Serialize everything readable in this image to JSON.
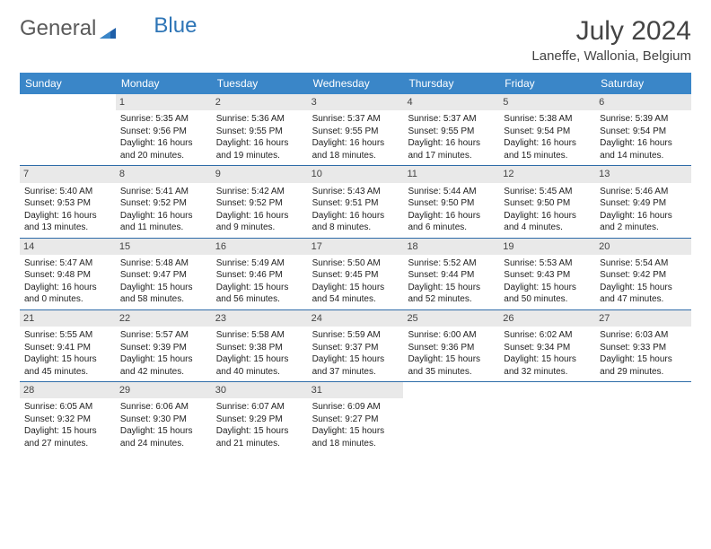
{
  "logo": {
    "text1": "General",
    "text2": "Blue"
  },
  "title": "July 2024",
  "location": "Laneffe, Wallonia, Belgium",
  "colors": {
    "header_bg": "#3a86c8",
    "header_text": "#ffffff",
    "week_border": "#2e6ca8",
    "daynum_bg": "#e9e9e9",
    "logo_gray": "#5a5a5a",
    "logo_blue": "#2e75b6"
  },
  "day_labels": [
    "Sunday",
    "Monday",
    "Tuesday",
    "Wednesday",
    "Thursday",
    "Friday",
    "Saturday"
  ],
  "weeks": [
    [
      {
        "empty": true
      },
      {
        "num": "1",
        "sunrise": "Sunrise: 5:35 AM",
        "sunset": "Sunset: 9:56 PM",
        "day1": "Daylight: 16 hours",
        "day2": "and 20 minutes."
      },
      {
        "num": "2",
        "sunrise": "Sunrise: 5:36 AM",
        "sunset": "Sunset: 9:55 PM",
        "day1": "Daylight: 16 hours",
        "day2": "and 19 minutes."
      },
      {
        "num": "3",
        "sunrise": "Sunrise: 5:37 AM",
        "sunset": "Sunset: 9:55 PM",
        "day1": "Daylight: 16 hours",
        "day2": "and 18 minutes."
      },
      {
        "num": "4",
        "sunrise": "Sunrise: 5:37 AM",
        "sunset": "Sunset: 9:55 PM",
        "day1": "Daylight: 16 hours",
        "day2": "and 17 minutes."
      },
      {
        "num": "5",
        "sunrise": "Sunrise: 5:38 AM",
        "sunset": "Sunset: 9:54 PM",
        "day1": "Daylight: 16 hours",
        "day2": "and 15 minutes."
      },
      {
        "num": "6",
        "sunrise": "Sunrise: 5:39 AM",
        "sunset": "Sunset: 9:54 PM",
        "day1": "Daylight: 16 hours",
        "day2": "and 14 minutes."
      }
    ],
    [
      {
        "num": "7",
        "sunrise": "Sunrise: 5:40 AM",
        "sunset": "Sunset: 9:53 PM",
        "day1": "Daylight: 16 hours",
        "day2": "and 13 minutes."
      },
      {
        "num": "8",
        "sunrise": "Sunrise: 5:41 AM",
        "sunset": "Sunset: 9:52 PM",
        "day1": "Daylight: 16 hours",
        "day2": "and 11 minutes."
      },
      {
        "num": "9",
        "sunrise": "Sunrise: 5:42 AM",
        "sunset": "Sunset: 9:52 PM",
        "day1": "Daylight: 16 hours",
        "day2": "and 9 minutes."
      },
      {
        "num": "10",
        "sunrise": "Sunrise: 5:43 AM",
        "sunset": "Sunset: 9:51 PM",
        "day1": "Daylight: 16 hours",
        "day2": "and 8 minutes."
      },
      {
        "num": "11",
        "sunrise": "Sunrise: 5:44 AM",
        "sunset": "Sunset: 9:50 PM",
        "day1": "Daylight: 16 hours",
        "day2": "and 6 minutes."
      },
      {
        "num": "12",
        "sunrise": "Sunrise: 5:45 AM",
        "sunset": "Sunset: 9:50 PM",
        "day1": "Daylight: 16 hours",
        "day2": "and 4 minutes."
      },
      {
        "num": "13",
        "sunrise": "Sunrise: 5:46 AM",
        "sunset": "Sunset: 9:49 PM",
        "day1": "Daylight: 16 hours",
        "day2": "and 2 minutes."
      }
    ],
    [
      {
        "num": "14",
        "sunrise": "Sunrise: 5:47 AM",
        "sunset": "Sunset: 9:48 PM",
        "day1": "Daylight: 16 hours",
        "day2": "and 0 minutes."
      },
      {
        "num": "15",
        "sunrise": "Sunrise: 5:48 AM",
        "sunset": "Sunset: 9:47 PM",
        "day1": "Daylight: 15 hours",
        "day2": "and 58 minutes."
      },
      {
        "num": "16",
        "sunrise": "Sunrise: 5:49 AM",
        "sunset": "Sunset: 9:46 PM",
        "day1": "Daylight: 15 hours",
        "day2": "and 56 minutes."
      },
      {
        "num": "17",
        "sunrise": "Sunrise: 5:50 AM",
        "sunset": "Sunset: 9:45 PM",
        "day1": "Daylight: 15 hours",
        "day2": "and 54 minutes."
      },
      {
        "num": "18",
        "sunrise": "Sunrise: 5:52 AM",
        "sunset": "Sunset: 9:44 PM",
        "day1": "Daylight: 15 hours",
        "day2": "and 52 minutes."
      },
      {
        "num": "19",
        "sunrise": "Sunrise: 5:53 AM",
        "sunset": "Sunset: 9:43 PM",
        "day1": "Daylight: 15 hours",
        "day2": "and 50 minutes."
      },
      {
        "num": "20",
        "sunrise": "Sunrise: 5:54 AM",
        "sunset": "Sunset: 9:42 PM",
        "day1": "Daylight: 15 hours",
        "day2": "and 47 minutes."
      }
    ],
    [
      {
        "num": "21",
        "sunrise": "Sunrise: 5:55 AM",
        "sunset": "Sunset: 9:41 PM",
        "day1": "Daylight: 15 hours",
        "day2": "and 45 minutes."
      },
      {
        "num": "22",
        "sunrise": "Sunrise: 5:57 AM",
        "sunset": "Sunset: 9:39 PM",
        "day1": "Daylight: 15 hours",
        "day2": "and 42 minutes."
      },
      {
        "num": "23",
        "sunrise": "Sunrise: 5:58 AM",
        "sunset": "Sunset: 9:38 PM",
        "day1": "Daylight: 15 hours",
        "day2": "and 40 minutes."
      },
      {
        "num": "24",
        "sunrise": "Sunrise: 5:59 AM",
        "sunset": "Sunset: 9:37 PM",
        "day1": "Daylight: 15 hours",
        "day2": "and 37 minutes."
      },
      {
        "num": "25",
        "sunrise": "Sunrise: 6:00 AM",
        "sunset": "Sunset: 9:36 PM",
        "day1": "Daylight: 15 hours",
        "day2": "and 35 minutes."
      },
      {
        "num": "26",
        "sunrise": "Sunrise: 6:02 AM",
        "sunset": "Sunset: 9:34 PM",
        "day1": "Daylight: 15 hours",
        "day2": "and 32 minutes."
      },
      {
        "num": "27",
        "sunrise": "Sunrise: 6:03 AM",
        "sunset": "Sunset: 9:33 PM",
        "day1": "Daylight: 15 hours",
        "day2": "and 29 minutes."
      }
    ],
    [
      {
        "num": "28",
        "sunrise": "Sunrise: 6:05 AM",
        "sunset": "Sunset: 9:32 PM",
        "day1": "Daylight: 15 hours",
        "day2": "and 27 minutes."
      },
      {
        "num": "29",
        "sunrise": "Sunrise: 6:06 AM",
        "sunset": "Sunset: 9:30 PM",
        "day1": "Daylight: 15 hours",
        "day2": "and 24 minutes."
      },
      {
        "num": "30",
        "sunrise": "Sunrise: 6:07 AM",
        "sunset": "Sunset: 9:29 PM",
        "day1": "Daylight: 15 hours",
        "day2": "and 21 minutes."
      },
      {
        "num": "31",
        "sunrise": "Sunrise: 6:09 AM",
        "sunset": "Sunset: 9:27 PM",
        "day1": "Daylight: 15 hours",
        "day2": "and 18 minutes."
      },
      {
        "empty": true
      },
      {
        "empty": true
      },
      {
        "empty": true
      }
    ]
  ]
}
